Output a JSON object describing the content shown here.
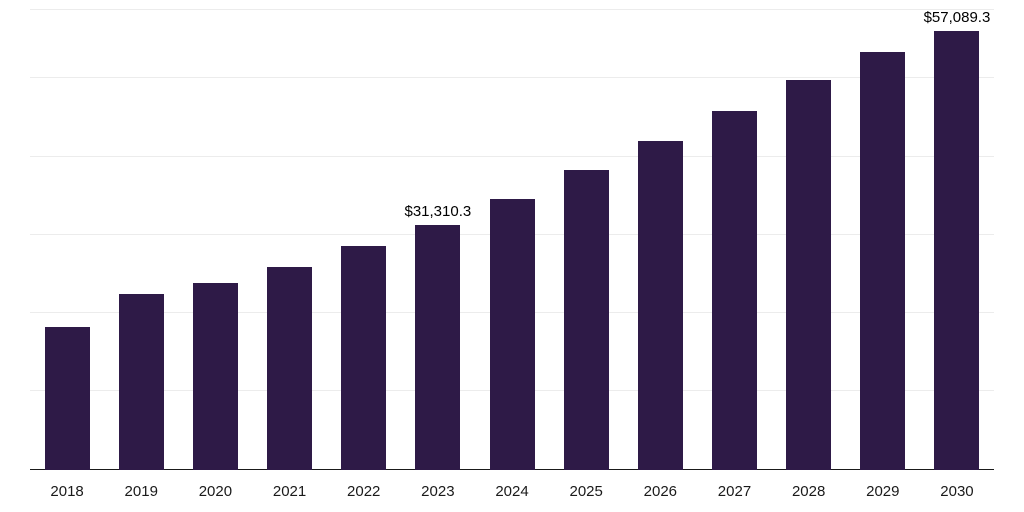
{
  "chart_data": {
    "type": "bar",
    "title": "",
    "xlabel": "",
    "ylabel": "",
    "categories": [
      "2018",
      "2019",
      "2020",
      "2021",
      "2022",
      "2023",
      "2024",
      "2025",
      "2026",
      "2027",
      "2028",
      "2029",
      "2030"
    ],
    "values": [
      18300,
      22500,
      23900,
      25900,
      28600,
      31310.3,
      34600,
      38300,
      42000,
      45800,
      49800,
      53400,
      57089.3
    ],
    "value_labels": {
      "2023": "$31,310.3",
      "2030": "$57,089.3"
    },
    "ylim": [
      0,
      58750
    ],
    "gridlines": [
      10000,
      20000,
      30000,
      40000,
      50000,
      58750
    ],
    "grid_on": true,
    "legend_position": "none",
    "bar_color": "#2e1a47",
    "grid_color": "#ececec",
    "axis_color": "#1a1a1a",
    "label_color": "#000000"
  }
}
